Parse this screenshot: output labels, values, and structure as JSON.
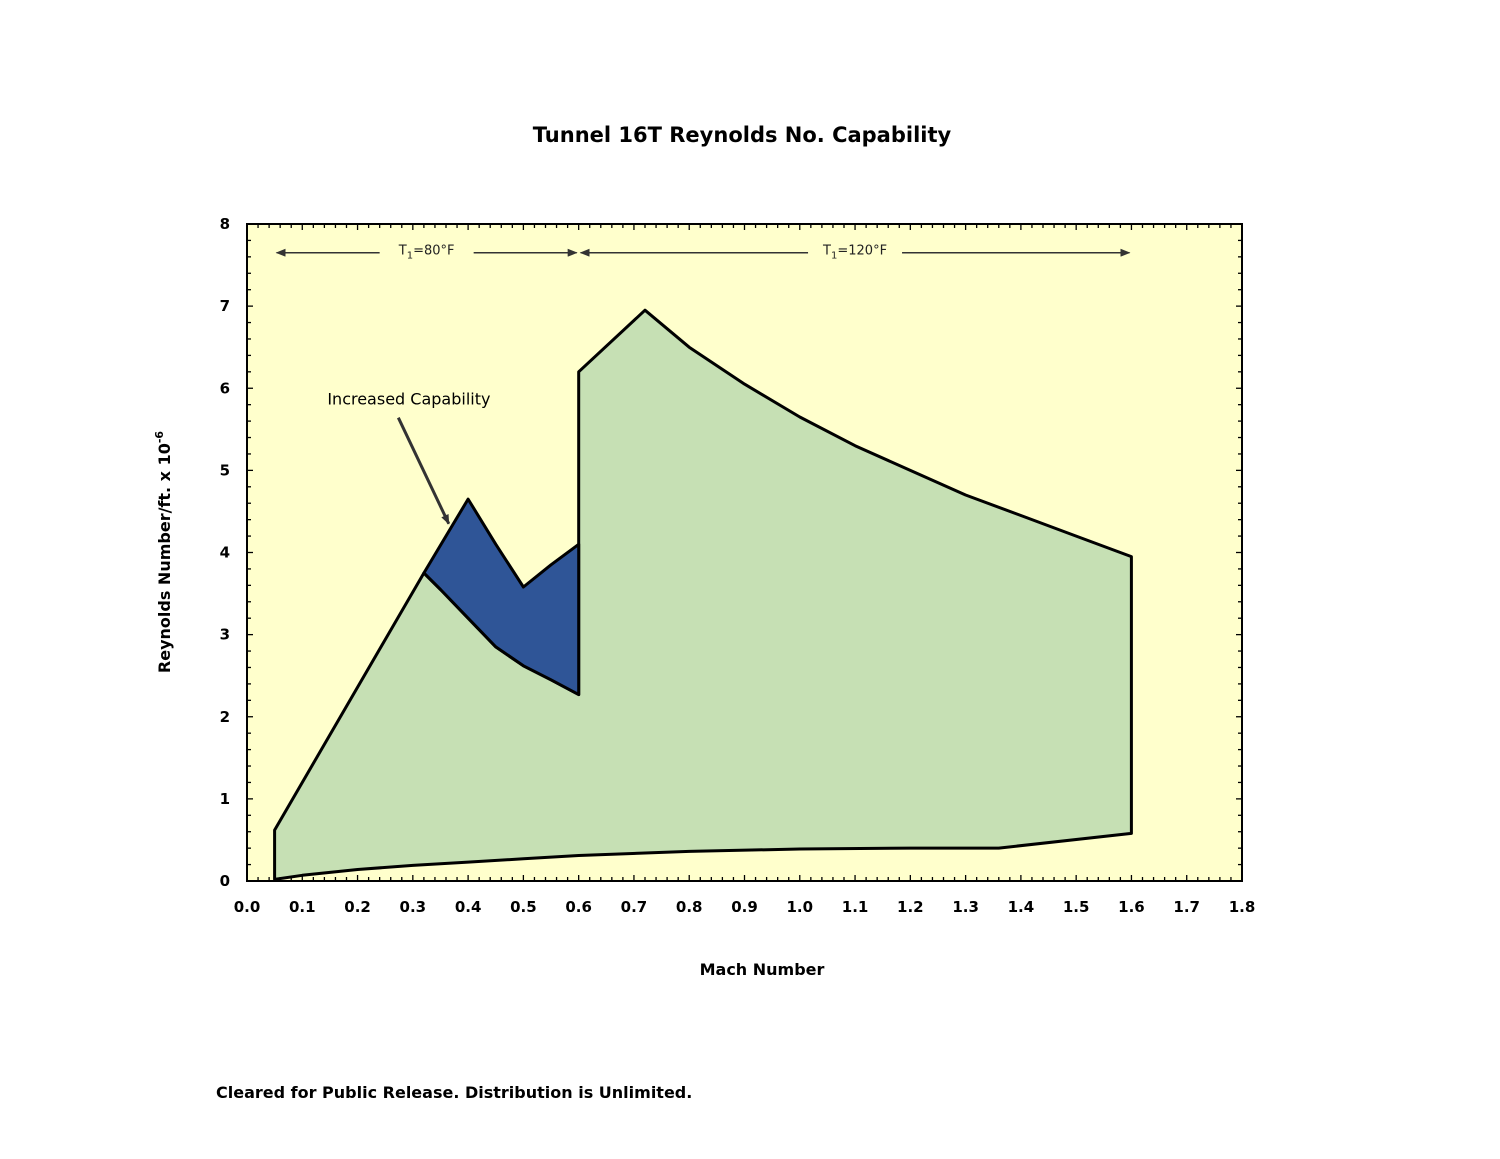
{
  "chart_data": {
    "type": "area",
    "title": "Tunnel 16T Reynolds No. Capability",
    "xlabel": "Mach Number",
    "ylabel_main": "Reynolds Number/ft.  x 10",
    "ylabel_exponent": "-6",
    "xlim": [
      0.0,
      1.8
    ],
    "ylim": [
      0,
      8
    ],
    "x_ticks": [
      "0.0",
      "0.1",
      "0.2",
      "0.3",
      "0.4",
      "0.5",
      "0.6",
      "0.7",
      "0.8",
      "0.9",
      "1.0",
      "1.1",
      "1.2",
      "1.3",
      "1.4",
      "1.5",
      "1.6",
      "1.7",
      "1.8"
    ],
    "y_ticks": [
      "0",
      "1",
      "2",
      "3",
      "4",
      "5",
      "6",
      "7",
      "8"
    ],
    "grid": false,
    "background_color": "#FFFFCC",
    "series": [
      {
        "color": "#C6E0B4",
        "boundary": [
          [
            0.05,
            0.02
          ],
          [
            0.1,
            0.07
          ],
          [
            0.2,
            0.14
          ],
          [
            0.3,
            0.19
          ],
          [
            0.4,
            0.23
          ],
          [
            0.5,
            0.27
          ],
          [
            0.6,
            0.31
          ],
          [
            0.8,
            0.36
          ],
          [
            1.0,
            0.39
          ],
          [
            1.2,
            0.4
          ],
          [
            1.36,
            0.4
          ],
          [
            1.6,
            0.58
          ],
          [
            1.6,
            3.95
          ],
          [
            1.5,
            4.2
          ],
          [
            1.4,
            4.45
          ],
          [
            1.3,
            4.7
          ],
          [
            1.2,
            5.0
          ],
          [
            1.1,
            5.3
          ],
          [
            1.0,
            5.65
          ],
          [
            0.9,
            6.05
          ],
          [
            0.8,
            6.5
          ],
          [
            0.72,
            6.95
          ],
          [
            0.6,
            6.2
          ],
          [
            0.6,
            2.27
          ],
          [
            0.55,
            2.45
          ],
          [
            0.5,
            2.62
          ],
          [
            0.45,
            2.85
          ],
          [
            0.4,
            3.2
          ],
          [
            0.35,
            3.55
          ],
          [
            0.32,
            3.75
          ],
          [
            0.05,
            0.62
          ]
        ]
      },
      {
        "color": "#2F5597",
        "boundary": [
          [
            0.32,
            3.75
          ],
          [
            0.4,
            4.65
          ],
          [
            0.45,
            4.1
          ],
          [
            0.5,
            3.58
          ],
          [
            0.55,
            3.85
          ],
          [
            0.6,
            4.1
          ],
          [
            0.6,
            2.27
          ],
          [
            0.55,
            2.45
          ],
          [
            0.5,
            2.62
          ],
          [
            0.45,
            2.85
          ],
          [
            0.4,
            3.2
          ],
          [
            0.35,
            3.55
          ]
        ]
      }
    ],
    "annotations": [
      {
        "text": "Increased Capability",
        "x": 0.48,
        "y": 5.8,
        "arrow_to": [
          0.365,
          4.35
        ]
      }
    ],
    "temperature_ranges": [
      {
        "label_prefix": "T",
        "label_sub": "1",
        "label_suffix": "=80°F",
        "x_start": 0.05,
        "x_end": 0.6,
        "y": 7.65
      },
      {
        "label_prefix": "T",
        "label_sub": "1",
        "label_suffix": "=120°F",
        "x_start": 0.6,
        "x_end": 1.6,
        "y": 7.65
      }
    ]
  },
  "footer": "Cleared for Public Release. Distribution is Unlimited."
}
